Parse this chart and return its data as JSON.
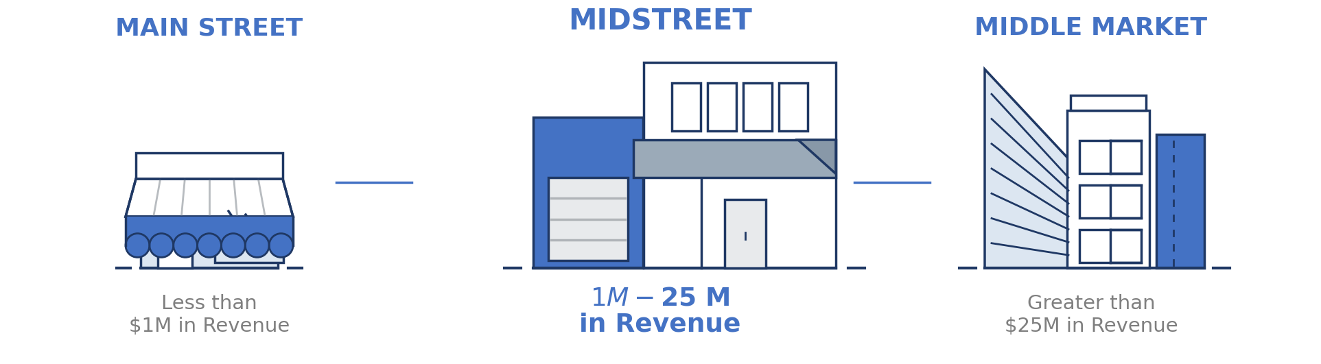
{
  "background_color": "#ffffff",
  "title_color": "#4472c4",
  "dark_blue": "#1f3864",
  "mid_blue": "#4472c4",
  "light_blue": "#dce6f1",
  "gray_canopy": "#9baab8",
  "light_gray": "#e0e0e0",
  "connector_color": "#4472c4",
  "labels": {
    "main_street_title": "MAIN STREET",
    "main_street_sub1": "Less than",
    "main_street_sub2": "$1M in Revenue",
    "midstreet_title": "MIDSTREET",
    "midstreet_sub1": "$1M - $25 M",
    "midstreet_sub2": "in Revenue",
    "middle_market_title": "MIDDLE MARKET",
    "middle_market_sub1": "Greater than",
    "middle_market_sub2": "$25M in Revenue"
  }
}
